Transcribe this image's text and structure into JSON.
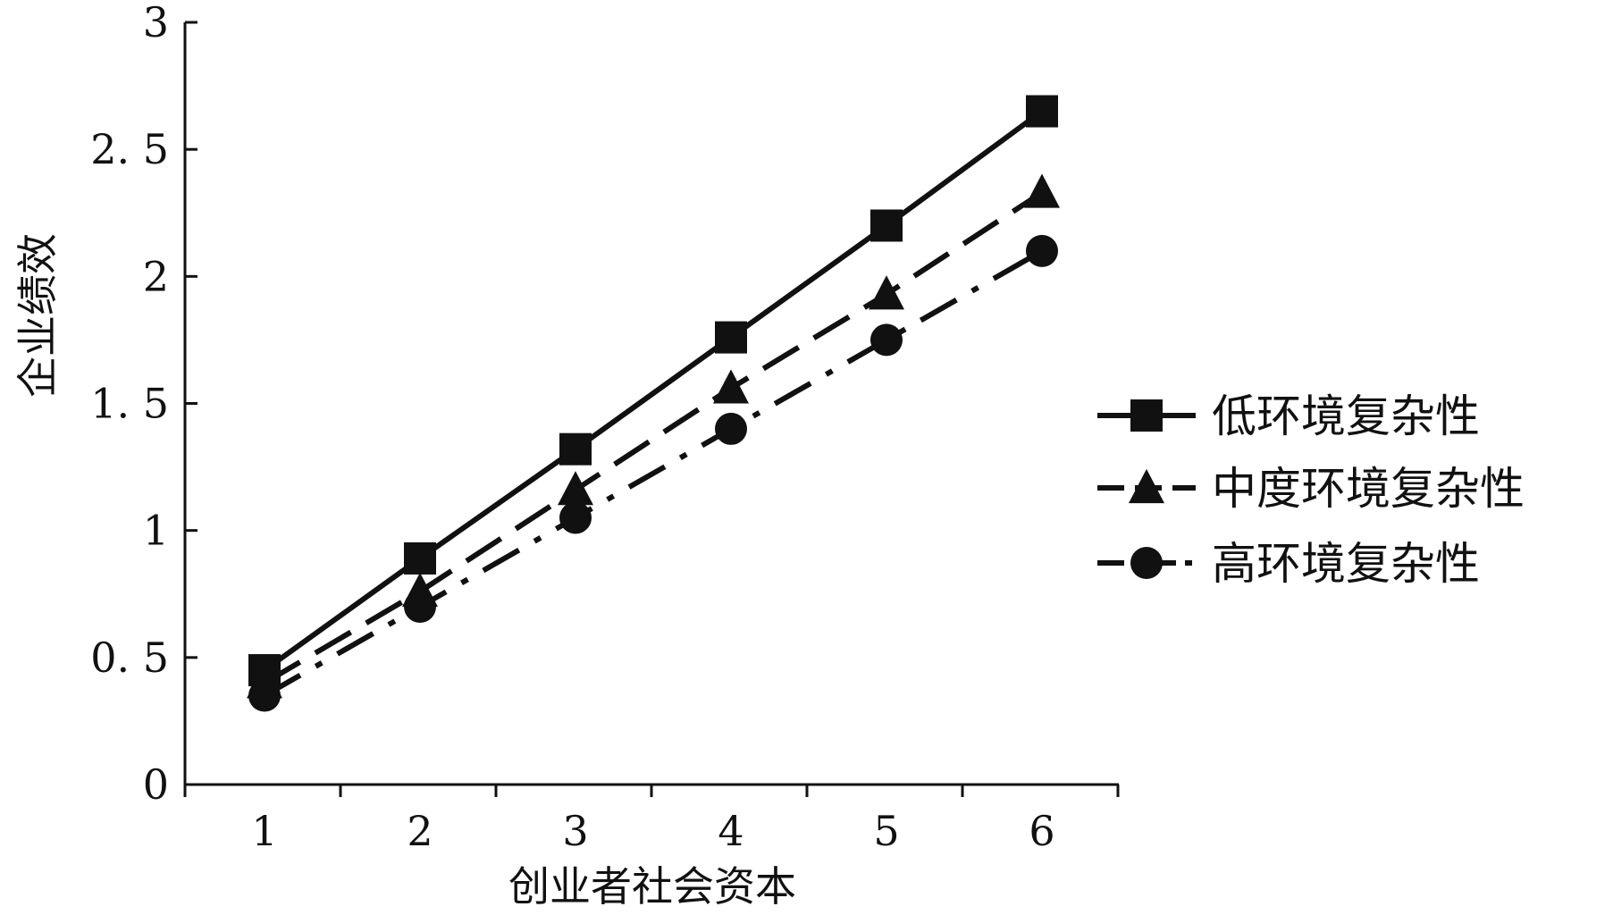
{
  "chart_data": {
    "type": "line",
    "title": "",
    "xlabel": "创业者社会资本",
    "ylabel": "企业绩效",
    "x": [
      1,
      2,
      3,
      4,
      5,
      6
    ],
    "x_tick_labels": [
      "1",
      "2",
      "3",
      "4",
      "5",
      "6"
    ],
    "ylim": [
      0,
      3
    ],
    "y_ticks": [
      0,
      0.5,
      1,
      1.5,
      2,
      2.5,
      3
    ],
    "y_tick_labels": [
      "0",
      "0. 5",
      "1",
      "1. 5",
      "2",
      "2. 5",
      "3"
    ],
    "grid": false,
    "legend_position": "right",
    "series": [
      {
        "name": "低环境复杂性",
        "values": [
          0.45,
          0.89,
          1.32,
          1.76,
          2.2,
          2.65
        ],
        "marker": "square",
        "line_style": "solid",
        "color": "#111111"
      },
      {
        "name": "中度环境复杂性",
        "values": [
          0.4,
          0.76,
          1.16,
          1.56,
          1.93,
          2.33
        ],
        "marker": "triangle",
        "line_style": "dashed",
        "color": "#111111"
      },
      {
        "name": "高环境复杂性",
        "values": [
          0.35,
          0.7,
          1.05,
          1.4,
          1.75,
          2.1
        ],
        "marker": "circle",
        "line_style": "dash-dot",
        "color": "#111111"
      }
    ]
  }
}
